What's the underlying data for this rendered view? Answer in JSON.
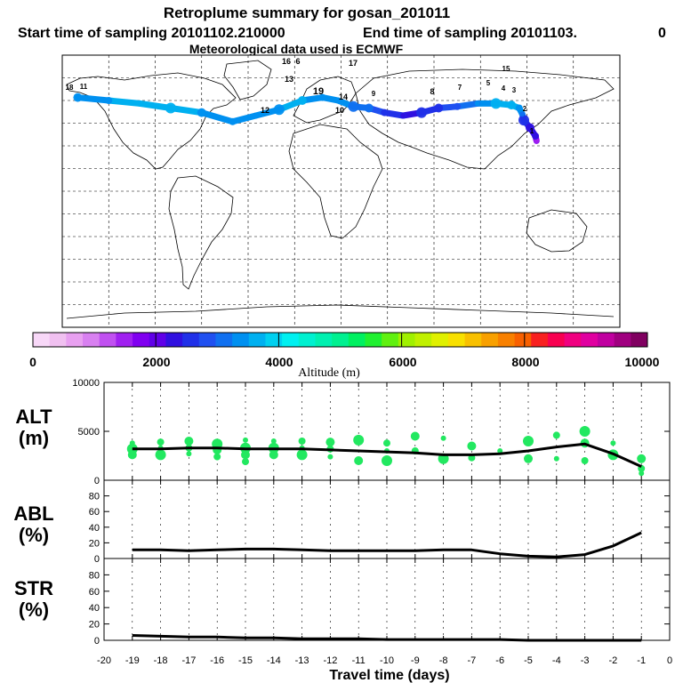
{
  "header": {
    "title": "Retroplume summary for gosan_201011",
    "start_time": "Start time of sampling 20101102.210000",
    "end_time": "End time of sampling 20101103.",
    "end_time_tail": "0",
    "meteo": "Meteorological data used is ECMWF"
  },
  "colorbar": {
    "label": "Altitude (m)",
    "tick_labels": [
      "0",
      "2000",
      "4000",
      "6000",
      "8000",
      "10000"
    ],
    "ticks": [
      0,
      2000,
      4000,
      6000,
      8000,
      10000
    ],
    "range": [
      0,
      10000
    ],
    "colors": [
      "#f8d8f8",
      "#f0c0f0",
      "#e8a0f0",
      "#d880f0",
      "#c050f0",
      "#a020f0",
      "#8000f0",
      "#6000e8",
      "#3010e0",
      "#2030e8",
      "#2050f0",
      "#1070f0",
      "#0090f0",
      "#00b0f0",
      "#00d0f0",
      "#00f0f0",
      "#00f0d0",
      "#00f0b0",
      "#00f090",
      "#00f060",
      "#20f030",
      "#60f010",
      "#a0f000",
      "#c0f000",
      "#e0f000",
      "#f8e000",
      "#f8c000",
      "#f8a000",
      "#f88000",
      "#f86000",
      "#f82020",
      "#f80050",
      "#f00080",
      "#e000a0",
      "#c000a0",
      "#a00080",
      "#800060"
    ]
  },
  "map": {
    "plume_labels": [
      "17",
      "16",
      "6",
      "13",
      "18",
      "19",
      "15",
      "14",
      "10",
      "11",
      "12",
      "9",
      "8",
      "7",
      "5",
      "4",
      "3",
      "2",
      "1"
    ],
    "plume_points": [
      {
        "lon": 126.2,
        "lat": 33.3,
        "alt": 1400
      },
      {
        "lon": 125.5,
        "lat": 36.5,
        "alt": 2200
      },
      {
        "lon": 122.0,
        "lat": 42.0,
        "alt": 2300
      },
      {
        "lon": 118.0,
        "lat": 47.0,
        "alt": 2600
      },
      {
        "lon": 117.0,
        "lat": 51.0,
        "alt": 3000
      },
      {
        "lon": 115.0,
        "lat": 55.0,
        "alt": 3500
      },
      {
        "lon": 110.0,
        "lat": 57.0,
        "alt": 3700
      },
      {
        "lon": 100.0,
        "lat": 58.0,
        "alt": 3600
      },
      {
        "lon": 88.0,
        "lat": 58.0,
        "alt": 3300
      },
      {
        "lon": 75.0,
        "lat": 56.0,
        "alt": 2900
      },
      {
        "lon": 63.0,
        "lat": 55.0,
        "alt": 2700
      },
      {
        "lon": 52.0,
        "lat": 52.0,
        "alt": 2500
      },
      {
        "lon": 40.0,
        "lat": 50.0,
        "alt": 2300
      },
      {
        "lon": 28.0,
        "lat": 52.0,
        "alt": 2600
      },
      {
        "lon": 18.0,
        "lat": 55.0,
        "alt": 3000
      },
      {
        "lon": 8.0,
        "lat": 56.0,
        "alt": 3200
      },
      {
        "lon": -2.0,
        "lat": 60.0,
        "alt": 3300
      },
      {
        "lon": -12.0,
        "lat": 62.0,
        "alt": 3400
      },
      {
        "lon": -25.0,
        "lat": 60.0,
        "alt": 3600
      },
      {
        "lon": -40.0,
        "lat": 54.0,
        "alt": 3500
      },
      {
        "lon": -55.0,
        "lat": 50.0,
        "alt": 3400
      },
      {
        "lon": -70.0,
        "lat": 46.0,
        "alt": 3300
      },
      {
        "lon": -90.0,
        "lat": 52.0,
        "alt": 3500
      },
      {
        "lon": -110.0,
        "lat": 55.0,
        "alt": 3600
      },
      {
        "lon": -130.0,
        "lat": 58.0,
        "alt": 3600
      },
      {
        "lon": -150.0,
        "lat": 60.0,
        "alt": 3500
      },
      {
        "lon": -170.0,
        "lat": 62.0,
        "alt": 3400
      }
    ]
  },
  "chart_data": [
    {
      "type": "line",
      "name": "ALT",
      "ylabel": "ALT",
      "yunit": "(m)",
      "ylim": [
        0,
        10000
      ],
      "ytick_labels": [
        "0",
        "5000",
        "10000"
      ],
      "yticks": [
        0,
        5000,
        10000
      ],
      "xlim": [
        -20,
        0
      ],
      "x": [
        -19,
        -18,
        -17,
        -16,
        -15,
        -14,
        -13,
        -12,
        -11,
        -10,
        -9,
        -8,
        -7,
        -6,
        -5,
        -4,
        -3,
        -2,
        -1
      ],
      "values": [
        3200,
        3200,
        3300,
        3300,
        3200,
        3200,
        3200,
        3100,
        3000,
        2900,
        2800,
        2600,
        2600,
        2700,
        3000,
        3400,
        3700,
        2700,
        1400
      ],
      "scatter": {
        "x": [
          -19,
          -19,
          -19,
          -18,
          -18,
          -18,
          -17,
          -17,
          -17,
          -16,
          -16,
          -16,
          -15,
          -15,
          -15,
          -15,
          -14,
          -14,
          -14,
          -13,
          -13,
          -13,
          -12,
          -12,
          -12,
          -11,
          -11,
          -10,
          -10,
          -10,
          -9,
          -9,
          -8,
          -8,
          -7,
          -7,
          -6,
          -5,
          -5,
          -4,
          -4,
          -3,
          -3,
          -3,
          -2,
          -2,
          -1,
          -1,
          -1
        ],
        "y": [
          3800,
          3200,
          2600,
          3900,
          3300,
          2600,
          4000,
          3300,
          2700,
          3700,
          3100,
          2400,
          4100,
          3300,
          2600,
          1900,
          4000,
          3300,
          2600,
          4000,
          3300,
          2600,
          3900,
          3200,
          2400,
          4100,
          2000,
          3800,
          3000,
          2000,
          4500,
          3000,
          4300,
          2200,
          3500,
          2300,
          3000,
          4000,
          2200,
          4600,
          2200,
          5000,
          3800,
          2000,
          3800,
          2600,
          2200,
          1200,
          700
        ]
      }
    },
    {
      "type": "line",
      "name": "ABL",
      "ylabel": "ABL",
      "yunit": "(%)",
      "ylim": [
        0,
        100
      ],
      "ytick_labels": [
        "0",
        "20",
        "40",
        "60",
        "80"
      ],
      "yticks": [
        0,
        20,
        40,
        60,
        80
      ],
      "xlim": [
        -20,
        0
      ],
      "x": [
        -19,
        -18,
        -17,
        -16,
        -15,
        -14,
        -13,
        -12,
        -11,
        -10,
        -9,
        -8,
        -7,
        -6,
        -5,
        -4,
        -3,
        -2,
        -1
      ],
      "values": [
        11,
        11,
        10,
        11,
        12,
        12,
        11,
        10,
        10,
        10,
        10,
        11,
        11,
        6,
        3,
        2,
        5,
        16,
        33
      ]
    },
    {
      "type": "line",
      "name": "STR",
      "ylabel": "STR",
      "yunit": "(%)",
      "ylim": [
        0,
        100
      ],
      "ytick_labels": [
        "0",
        "20",
        "40",
        "60",
        "80"
      ],
      "yticks": [
        0,
        20,
        40,
        60,
        80
      ],
      "xlim": [
        -20,
        0
      ],
      "x": [
        -19,
        -18,
        -17,
        -16,
        -15,
        -14,
        -13,
        -12,
        -11,
        -10,
        -9,
        -8,
        -7,
        -6,
        -5,
        -4,
        -3,
        -2,
        -1
      ],
      "values": [
        6,
        5,
        4,
        4,
        3,
        3,
        2,
        2,
        2,
        1,
        1,
        1,
        1,
        1,
        0,
        0,
        0,
        0,
        0
      ],
      "xlabel": "Travel time (days)",
      "xtick_labels": [
        "-20",
        "-19",
        "-18",
        "-17",
        "-16",
        "-15",
        "-14",
        "-13",
        "-12",
        "-11",
        "-10",
        "-9",
        "-8",
        "-7",
        "-6",
        "-5",
        "-4",
        "-3",
        "-2",
        "-1",
        "0"
      ],
      "xticks": [
        -20,
        -19,
        -18,
        -17,
        -16,
        -15,
        -14,
        -13,
        -12,
        -11,
        -10,
        -9,
        -8,
        -7,
        -6,
        -5,
        -4,
        -3,
        -2,
        -1,
        0
      ]
    }
  ]
}
